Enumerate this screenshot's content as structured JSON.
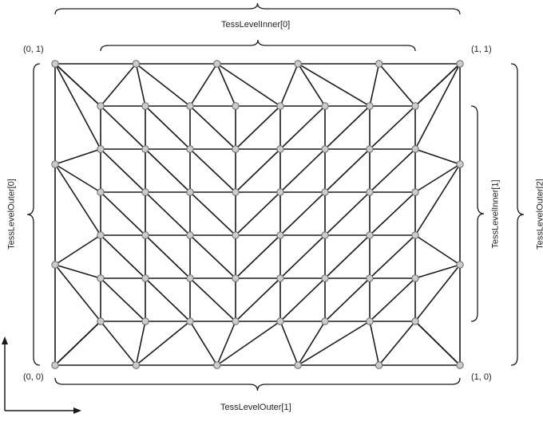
{
  "labels": {
    "inner0": "TessLevelInner[0]",
    "inner1": "TessLevelInner[1]",
    "outer0": "TessLevelOuter[0]",
    "outer1": "TessLevelOuter[1]",
    "outer2": "TessLevelOuter[2]"
  },
  "corners": {
    "top_left": "(0, 1)",
    "top_right": "(1, 1)",
    "bottom_left": "(0, 0)",
    "bottom_right": "(1, 0)"
  },
  "colors": {
    "line": "#1a1a1a",
    "vertex_fill": "#cccccc",
    "vertex_stroke": "#666666"
  },
  "tessellation": {
    "outer_edge_segments": {
      "top": 5,
      "bottom": 5,
      "left": 3,
      "right": 3
    },
    "inner_columns": 8,
    "inner_rows": 6
  }
}
